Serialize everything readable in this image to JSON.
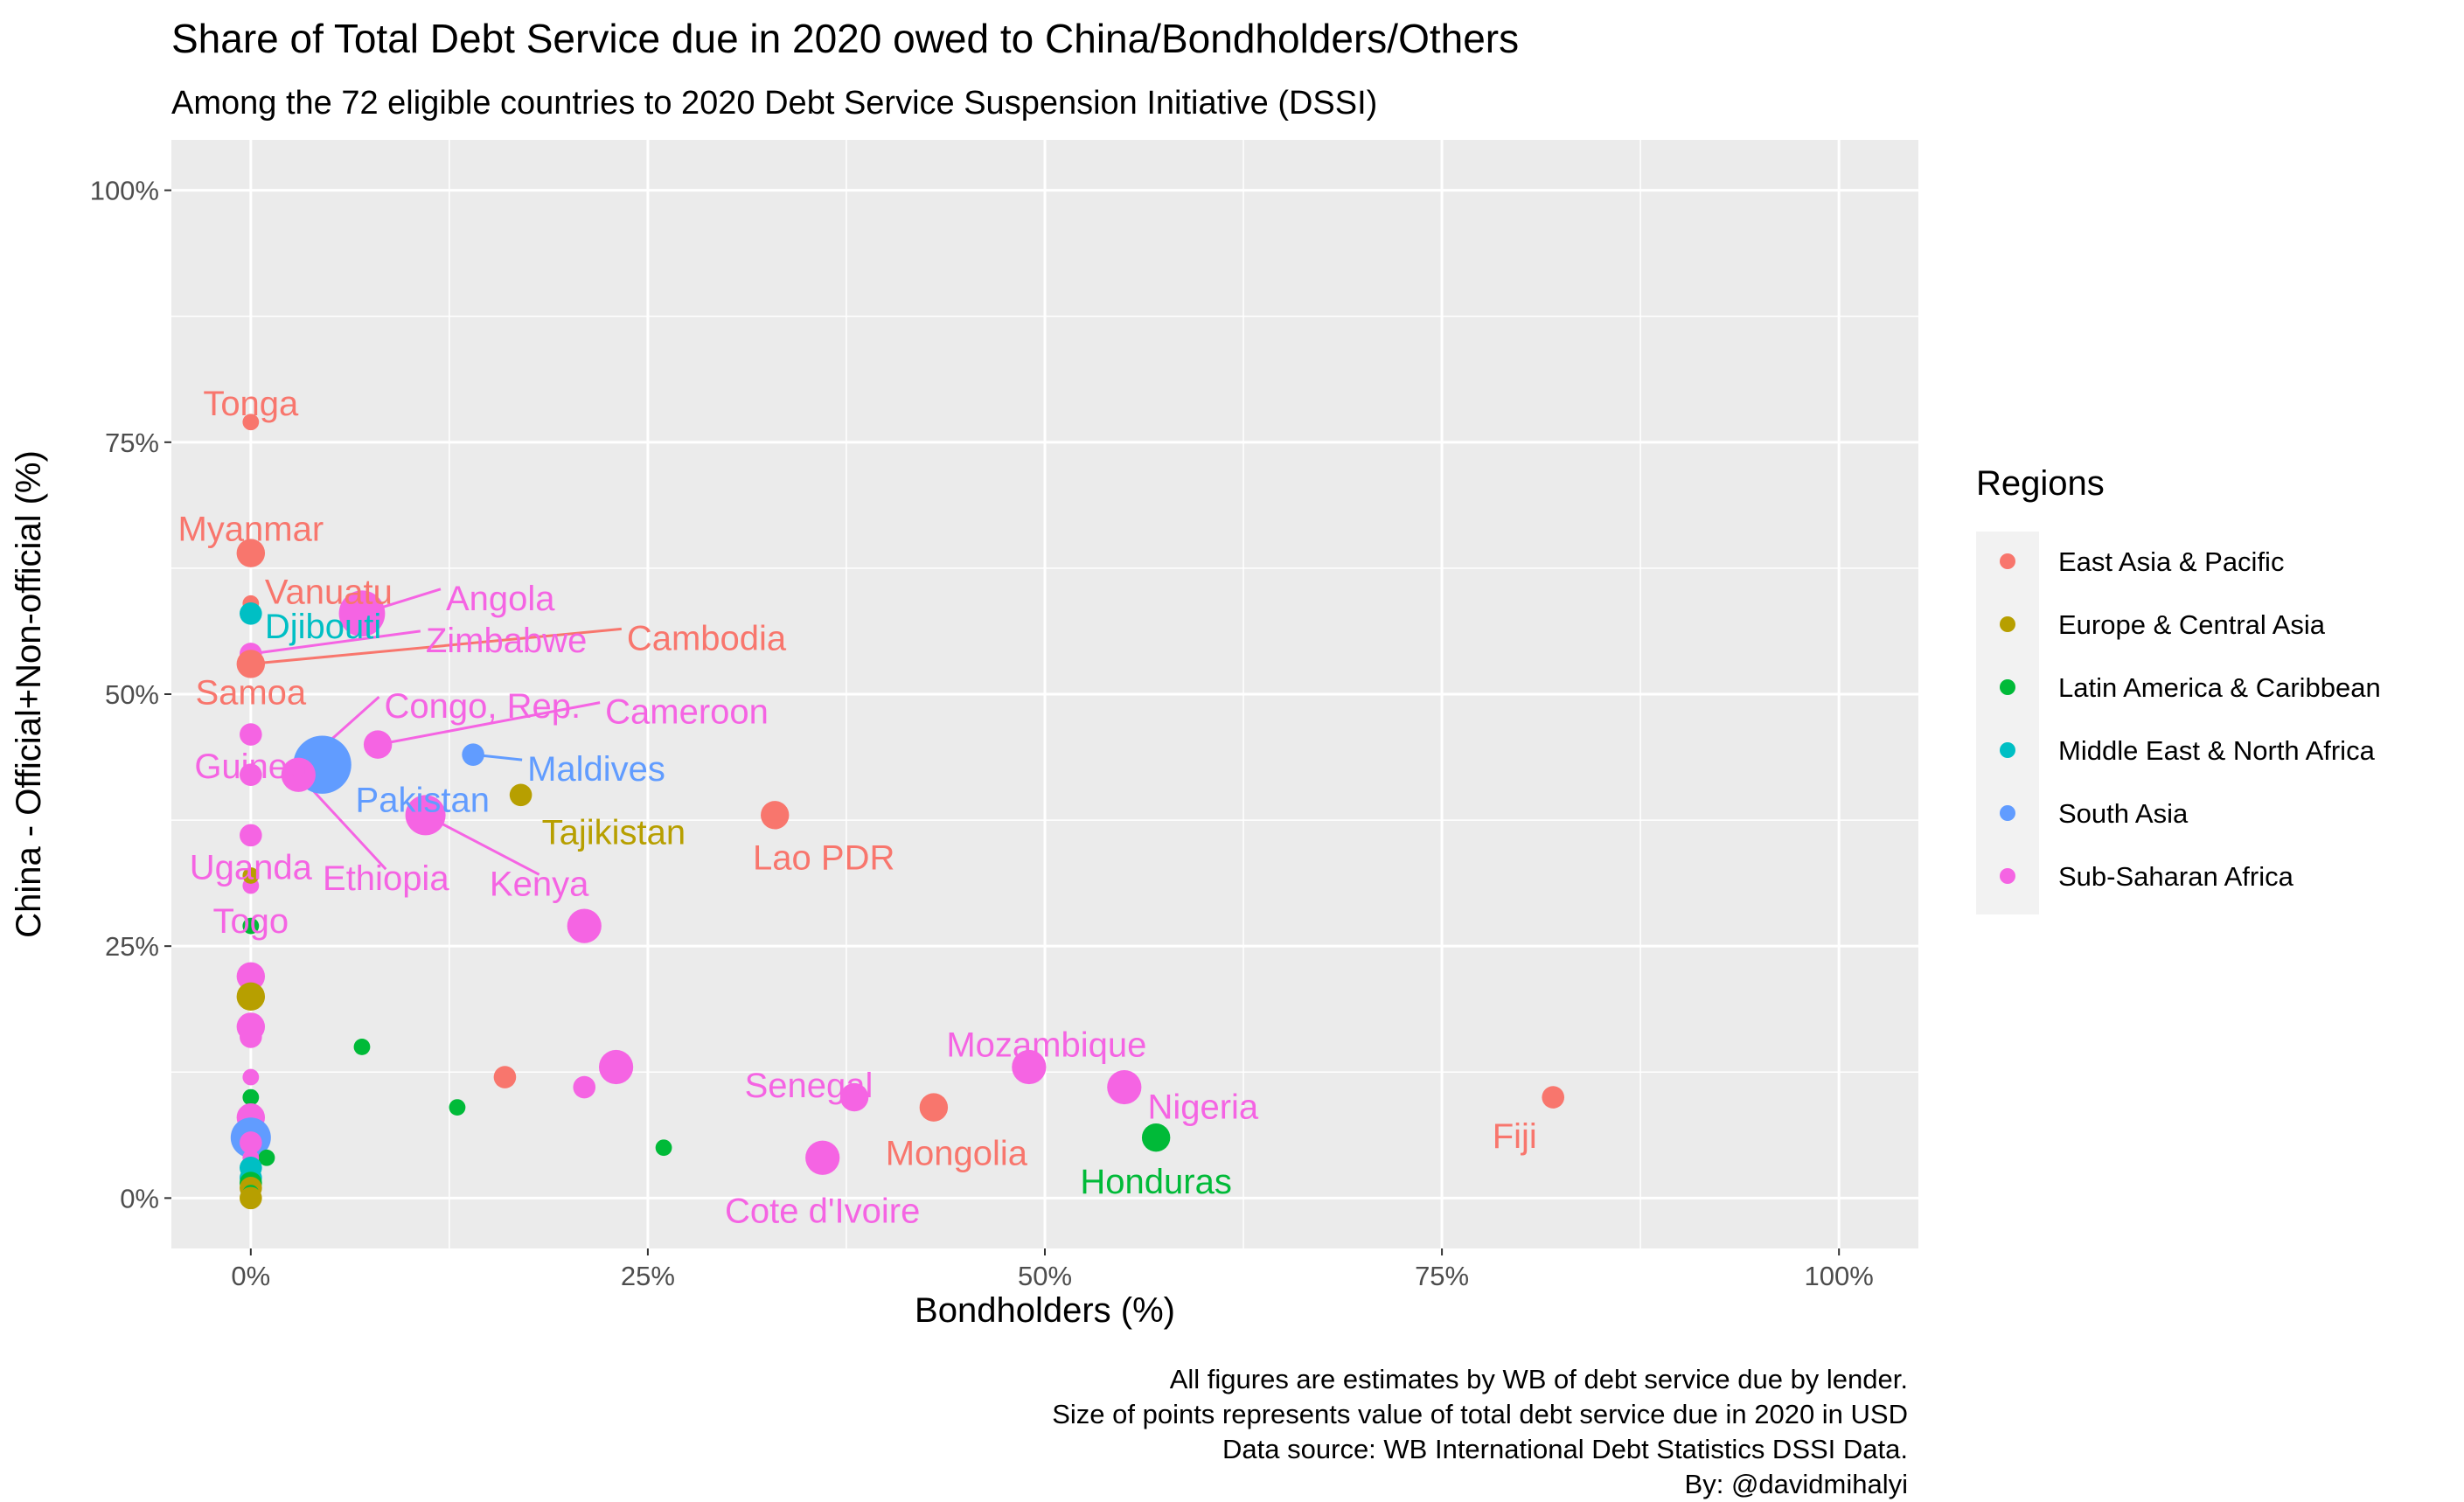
{
  "chart_data": {
    "type": "scatter",
    "title": "Share of Total Debt Service due in 2020 owed to China/Bondholders/Others",
    "subtitle": "Among the 72 eligible countries to 2020 Debt Service Suspension Initiative (DSSI)",
    "xlabel": "Bondholders (%)",
    "ylabel": "China - Official+Non-official (%)",
    "xlim": [
      -5,
      105
    ],
    "ylim": [
      -5,
      105
    ],
    "x_ticks": [
      "0%",
      "25%",
      "50%",
      "75%",
      "100%"
    ],
    "y_ticks": [
      "0%",
      "25%",
      "50%",
      "75%",
      "100%"
    ],
    "grid": true,
    "legend": {
      "title": "Regions",
      "position": "right",
      "entries": [
        {
          "name": "East Asia & Pacific",
          "color": "#F8766D"
        },
        {
          "name": "Europe & Central Asia",
          "color": "#B79F00"
        },
        {
          "name": "Latin America & Caribbean",
          "color": "#00BA38"
        },
        {
          "name": "Middle East & North Africa",
          "color": "#00BFC4"
        },
        {
          "name": "South Asia",
          "color": "#619CFF"
        },
        {
          "name": "Sub-Saharan Africa",
          "color": "#F564E3"
        }
      ]
    },
    "caption": [
      "All figures are  estimates by WB of debt service due by lender.",
      "Size of points represents value of total debt service due in 2020 in USD",
      "Data source: WB International Debt Statistics DSSI Data.",
      "By: @davidmihalyi"
    ],
    "points": [
      {
        "label": "Tonga",
        "x": 0,
        "y": 77,
        "region": "East Asia & Pacific",
        "size": 1
      },
      {
        "label": "Myanmar",
        "x": 0,
        "y": 64,
        "region": "East Asia & Pacific",
        "size": 3
      },
      {
        "label": "Vanuatu",
        "x": 0,
        "y": 59,
        "region": "East Asia & Pacific",
        "size": 1
      },
      {
        "label": "Angola",
        "x": 7,
        "y": 58,
        "region": "Sub-Saharan Africa",
        "size": 6
      },
      {
        "label": "Djibouti",
        "x": 0,
        "y": 58,
        "region": "Middle East & North Africa",
        "size": 2
      },
      {
        "label": "Zimbabwe",
        "x": 0,
        "y": 54,
        "region": "Sub-Saharan Africa",
        "size": 2
      },
      {
        "label": "Cambodia",
        "x": 0,
        "y": 53,
        "region": "East Asia & Pacific",
        "size": 3
      },
      {
        "label": "Samoa",
        "x": 0,
        "y": 53,
        "region": "East Asia & Pacific",
        "size": 1
      },
      {
        "label": "Congo, Rep.",
        "x": 4,
        "y": 44,
        "region": "Sub-Saharan Africa",
        "size": 3
      },
      {
        "label": "Cameroon",
        "x": 8,
        "y": 45,
        "region": "Sub-Saharan Africa",
        "size": 3
      },
      {
        "label": "Guinea",
        "x": 0,
        "y": 46,
        "region": "Sub-Saharan Africa",
        "size": 2
      },
      {
        "label": "Maldives",
        "x": 14,
        "y": 44,
        "region": "South Asia",
        "size": 2
      },
      {
        "label": "Pakistan",
        "x": 4.5,
        "y": 43,
        "region": "South Asia",
        "size": 8
      },
      {
        "label": "Tajikistan",
        "x": 17,
        "y": 40,
        "region": "Europe & Central Asia",
        "size": 2
      },
      {
        "label": "Lao PDR",
        "x": 33,
        "y": 38,
        "region": "East Asia & Pacific",
        "size": 3
      },
      {
        "label": "Uganda",
        "x": 0,
        "y": 36,
        "region": "Sub-Saharan Africa",
        "size": 2
      },
      {
        "label": "Ethiopia",
        "x": 3,
        "y": 42,
        "region": "Sub-Saharan Africa",
        "size": 4
      },
      {
        "label": "Kenya",
        "x": 11,
        "y": 38,
        "region": "Sub-Saharan Africa",
        "size": 5
      },
      {
        "label": "Togo",
        "x": 0,
        "y": 31,
        "region": "Sub-Saharan Africa",
        "size": 1
      },
      {
        "label": "Mozambique",
        "x": 49,
        "y": 13,
        "region": "Sub-Saharan Africa",
        "size": 4
      },
      {
        "label": "Senegal",
        "x": 38,
        "y": 10,
        "region": "Sub-Saharan Africa",
        "size": 3
      },
      {
        "label": "Nigeria",
        "x": 55,
        "y": 11,
        "region": "Sub-Saharan Africa",
        "size": 4
      },
      {
        "label": "Mongolia",
        "x": 43,
        "y": 9,
        "region": "East Asia & Pacific",
        "size": 3
      },
      {
        "label": "Fiji",
        "x": 82,
        "y": 10,
        "region": "East Asia & Pacific",
        "size": 2
      },
      {
        "label": "Honduras",
        "x": 57,
        "y": 6,
        "region": "Latin America & Caribbean",
        "size": 3
      },
      {
        "label": "Cote d'Ivoire",
        "x": 36,
        "y": 4,
        "region": "Sub-Saharan Africa",
        "size": 4
      },
      {
        "label": "",
        "x": 0,
        "y": 42,
        "region": "Sub-Saharan Africa",
        "size": 2
      },
      {
        "label": "",
        "x": 0,
        "y": 32,
        "region": "Europe & Central Asia",
        "size": 1
      },
      {
        "label": "",
        "x": 0,
        "y": 27,
        "region": "Latin America & Caribbean",
        "size": 1
      },
      {
        "label": "",
        "x": 21,
        "y": 27,
        "region": "Sub-Saharan Africa",
        "size": 4
      },
      {
        "label": "",
        "x": 0,
        "y": 22,
        "region": "Sub-Saharan Africa",
        "size": 3
      },
      {
        "label": "",
        "x": 0,
        "y": 20,
        "region": "Europe & Central Asia",
        "size": 3
      },
      {
        "label": "",
        "x": 0,
        "y": 17,
        "region": "Sub-Saharan Africa",
        "size": 3
      },
      {
        "label": "",
        "x": 0,
        "y": 16,
        "region": "Sub-Saharan Africa",
        "size": 2
      },
      {
        "label": "",
        "x": 7,
        "y": 15,
        "region": "Latin America & Caribbean",
        "size": 1
      },
      {
        "label": "",
        "x": 23,
        "y": 13,
        "region": "Sub-Saharan Africa",
        "size": 4
      },
      {
        "label": "",
        "x": 0,
        "y": 12,
        "region": "Sub-Saharan Africa",
        "size": 1
      },
      {
        "label": "",
        "x": 16,
        "y": 12,
        "region": "East Asia & Pacific",
        "size": 2
      },
      {
        "label": "",
        "x": 21,
        "y": 11,
        "region": "Sub-Saharan Africa",
        "size": 2
      },
      {
        "label": "",
        "x": 0,
        "y": 10,
        "region": "Latin America & Caribbean",
        "size": 1
      },
      {
        "label": "",
        "x": 13,
        "y": 9,
        "region": "Latin America & Caribbean",
        "size": 1
      },
      {
        "label": "",
        "x": 0,
        "y": 8,
        "region": "Sub-Saharan Africa",
        "size": 3
      },
      {
        "label": "",
        "x": 0,
        "y": 7,
        "region": "Sub-Saharan Africa",
        "size": 3
      },
      {
        "label": "",
        "x": 0,
        "y": 6,
        "region": "South Asia",
        "size": 5
      },
      {
        "label": "",
        "x": 0,
        "y": 5.5,
        "region": "Sub-Saharan Africa",
        "size": 2
      },
      {
        "label": "",
        "x": 26,
        "y": 5,
        "region": "Latin America & Caribbean",
        "size": 1
      },
      {
        "label": "",
        "x": 1,
        "y": 4,
        "region": "Latin America & Caribbean",
        "size": 1
      },
      {
        "label": "",
        "x": 0,
        "y": 4,
        "region": "Sub-Saharan Africa",
        "size": 1
      },
      {
        "label": "",
        "x": 0,
        "y": 3,
        "region": "Middle East & North Africa",
        "size": 2
      },
      {
        "label": "",
        "x": 0,
        "y": 2,
        "region": "Middle East & North Africa",
        "size": 2
      },
      {
        "label": "",
        "x": 0,
        "y": 1.5,
        "region": "Latin America & Caribbean",
        "size": 2
      },
      {
        "label": "",
        "x": 0,
        "y": 1,
        "region": "Europe & Central Asia",
        "size": 2
      },
      {
        "label": "",
        "x": 0,
        "y": 0.5,
        "region": "Latin America & Caribbean",
        "size": 1
      },
      {
        "label": "",
        "x": 0,
        "y": 0,
        "region": "Europe & Central Asia",
        "size": 2
      }
    ]
  }
}
